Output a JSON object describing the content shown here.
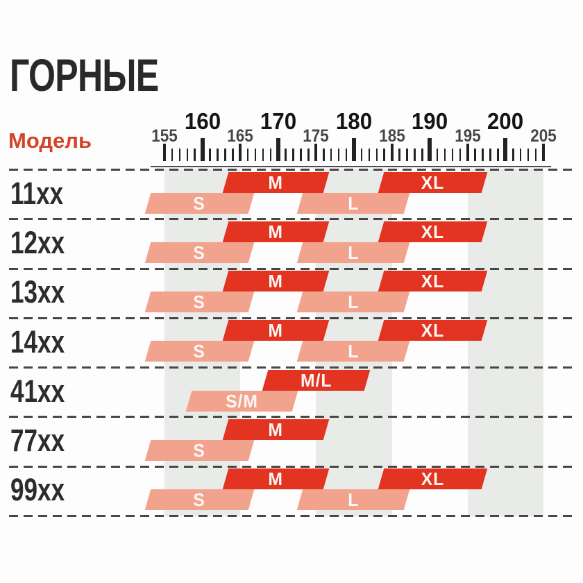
{
  "header": {
    "title": "ГОРНЫЕ",
    "model_column_label": "Модель"
  },
  "colors": {
    "dark_bar": "#e23420",
    "light_bar": "#f2a38e",
    "bar_text": "#fdf7f5",
    "stripe_band": "#e9ebe8",
    "divider": "#474747",
    "tick": "#222222",
    "accent_red": "#d14529",
    "title_text": "#29292b"
  },
  "chart_data": {
    "type": "range-bars",
    "title": "ГОРНЫЕ",
    "row_header": "Модель",
    "axis": {
      "unit": "cm (rider height)",
      "min": 155,
      "max": 205,
      "tick_step": 1,
      "major_tick_step_bold": 10,
      "major_tick_step": 5,
      "major_labels": [
        "160",
        "170",
        "180",
        "190",
        "200"
      ],
      "major_label_values": [
        160,
        170,
        180,
        190,
        200
      ],
      "minor_labels": [
        "155",
        "165",
        "175",
        "185",
        "195",
        "205"
      ],
      "minor_label_values": [
        155,
        165,
        175,
        185,
        195,
        205
      ],
      "stripe_bands": [
        [
          155,
          165
        ],
        [
          175,
          185
        ],
        [
          195,
          205
        ]
      ],
      "grid": "dashed horizontal row dividers",
      "legend": "none"
    },
    "rows": [
      {
        "model": "11xx",
        "bars": [
          {
            "label": "S",
            "style": "light",
            "start": 152.8,
            "end": 166.4
          },
          {
            "label": "M",
            "style": "dark",
            "start": 163.1,
            "end": 176.4
          },
          {
            "label": "L",
            "style": "light",
            "start": 172.9,
            "end": 187.0
          },
          {
            "label": "XL",
            "style": "dark",
            "start": 183.6,
            "end": 197.2
          }
        ]
      },
      {
        "model": "12xx",
        "bars": [
          {
            "label": "S",
            "style": "light",
            "start": 152.8,
            "end": 166.4
          },
          {
            "label": "M",
            "style": "dark",
            "start": 163.1,
            "end": 176.4
          },
          {
            "label": "L",
            "style": "light",
            "start": 172.9,
            "end": 187.0
          },
          {
            "label": "XL",
            "style": "dark",
            "start": 183.6,
            "end": 197.2
          }
        ]
      },
      {
        "model": "13xx",
        "bars": [
          {
            "label": "S",
            "style": "light",
            "start": 152.8,
            "end": 166.4
          },
          {
            "label": "M",
            "style": "dark",
            "start": 163.1,
            "end": 176.4
          },
          {
            "label": "L",
            "style": "light",
            "start": 172.9,
            "end": 187.0
          },
          {
            "label": "XL",
            "style": "dark",
            "start": 183.6,
            "end": 197.2
          }
        ]
      },
      {
        "model": "14xx",
        "bars": [
          {
            "label": "S",
            "style": "light",
            "start": 152.8,
            "end": 166.4
          },
          {
            "label": "M",
            "style": "dark",
            "start": 163.1,
            "end": 176.4
          },
          {
            "label": "L",
            "style": "light",
            "start": 172.9,
            "end": 187.0
          },
          {
            "label": "XL",
            "style": "dark",
            "start": 183.6,
            "end": 197.2
          }
        ]
      },
      {
        "model": "41xx",
        "bars": [
          {
            "label": "S/M",
            "style": "light",
            "start": 158.2,
            "end": 172.2
          },
          {
            "label": "M/L",
            "style": "dark",
            "start": 168.3,
            "end": 181.8
          }
        ]
      },
      {
        "model": "77xx",
        "bars": [
          {
            "label": "S",
            "style": "light",
            "start": 152.8,
            "end": 166.4
          },
          {
            "label": "M",
            "style": "dark",
            "start": 163.1,
            "end": 176.4
          }
        ]
      },
      {
        "model": "99xx",
        "bars": [
          {
            "label": "S",
            "style": "light",
            "start": 152.8,
            "end": 166.4
          },
          {
            "label": "M",
            "style": "dark",
            "start": 163.1,
            "end": 176.4
          },
          {
            "label": "L",
            "style": "light",
            "start": 172.9,
            "end": 187.0
          },
          {
            "label": "XL",
            "style": "dark",
            "start": 183.6,
            "end": 197.2
          }
        ]
      }
    ]
  }
}
